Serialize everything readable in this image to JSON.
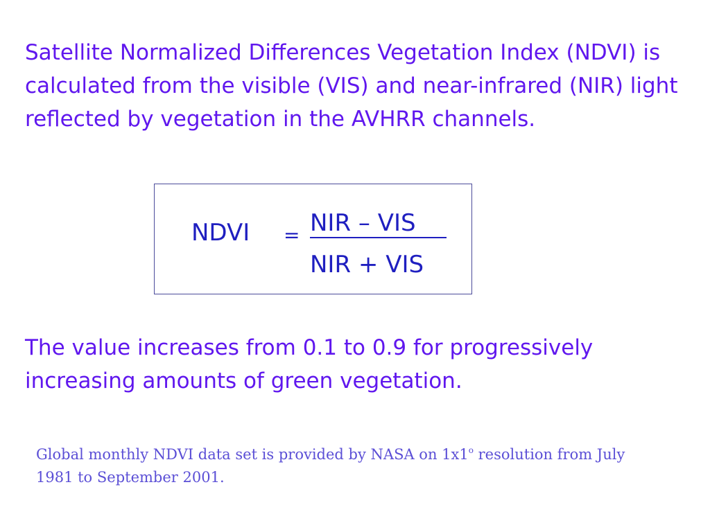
{
  "slide": {
    "intro_text": "Satellite Normalized Differences Vegetation Index (NDVI) is calculated from the visible (VIS) and near-infrared (NIR) light reflected by vegetation in the AVHRR channels.",
    "formula": {
      "lhs": "NDVI",
      "equals": "=",
      "numerator": "NIR – VIS",
      "denominator": "NIR + VIS"
    },
    "value_note": "The value increases from 0.1 to 0.9 for progressively increasing amounts of green vegetation.",
    "source_note": {
      "before_superscript": "Global monthly NDVI data set is provided by NASA on 1x1",
      "superscript": "o",
      "after_superscript": " resolution from July 1981 to September 2001."
    }
  },
  "colors": {
    "body_text": "#6017ee",
    "formula_text": "#1f1fc0",
    "source_text": "#5b4fd6",
    "box_border": "#4a4a9a",
    "background": "#ffffff"
  }
}
